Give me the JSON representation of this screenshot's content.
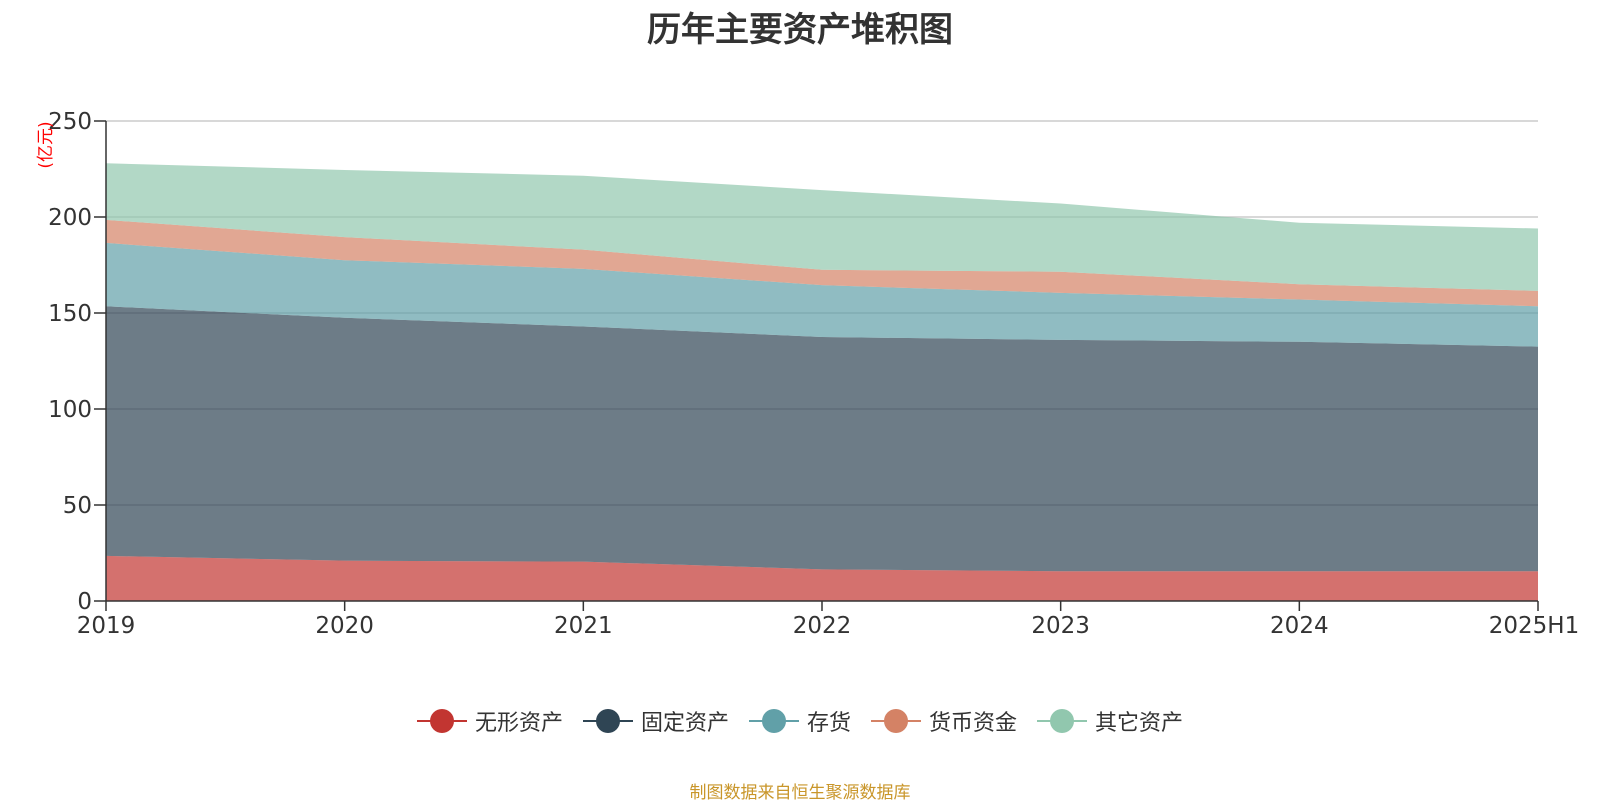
{
  "title": "历年主要资产堆积图",
  "source_note": "制图数据来自恒生聚源数据库",
  "chart_data": {
    "type": "area",
    "stacked": true,
    "title": "历年主要资产堆积图",
    "ylabel": "(亿元)",
    "xlabel": "",
    "categories": [
      "2019",
      "2020",
      "2021",
      "2022",
      "2023",
      "2024",
      "2025H1"
    ],
    "ylim": [
      0,
      250
    ],
    "yticks": [
      0,
      50,
      100,
      150,
      200,
      250
    ],
    "grid": true,
    "legend_position": "bottom",
    "series": [
      {
        "name": "无形资产",
        "color": "#c23531",
        "values": [
          23.5,
          21,
          20.5,
          16.5,
          15.5,
          15.5,
          15.5
        ]
      },
      {
        "name": "固定资产",
        "color": "#2f4554",
        "values": [
          130,
          126.5,
          122.5,
          121,
          120.5,
          119.5,
          117
        ]
      },
      {
        "name": "存货",
        "color": "#61a0a8",
        "values": [
          33,
          30,
          30,
          27,
          24.5,
          22,
          21
        ]
      },
      {
        "name": "货币资金",
        "color": "#d48265",
        "values": [
          12,
          12,
          10,
          8,
          11,
          8,
          8
        ]
      },
      {
        "name": "其它资产",
        "color": "#91c7ae",
        "values": [
          29.5,
          35,
          38.5,
          41.5,
          35.5,
          32,
          32.5
        ]
      }
    ]
  }
}
